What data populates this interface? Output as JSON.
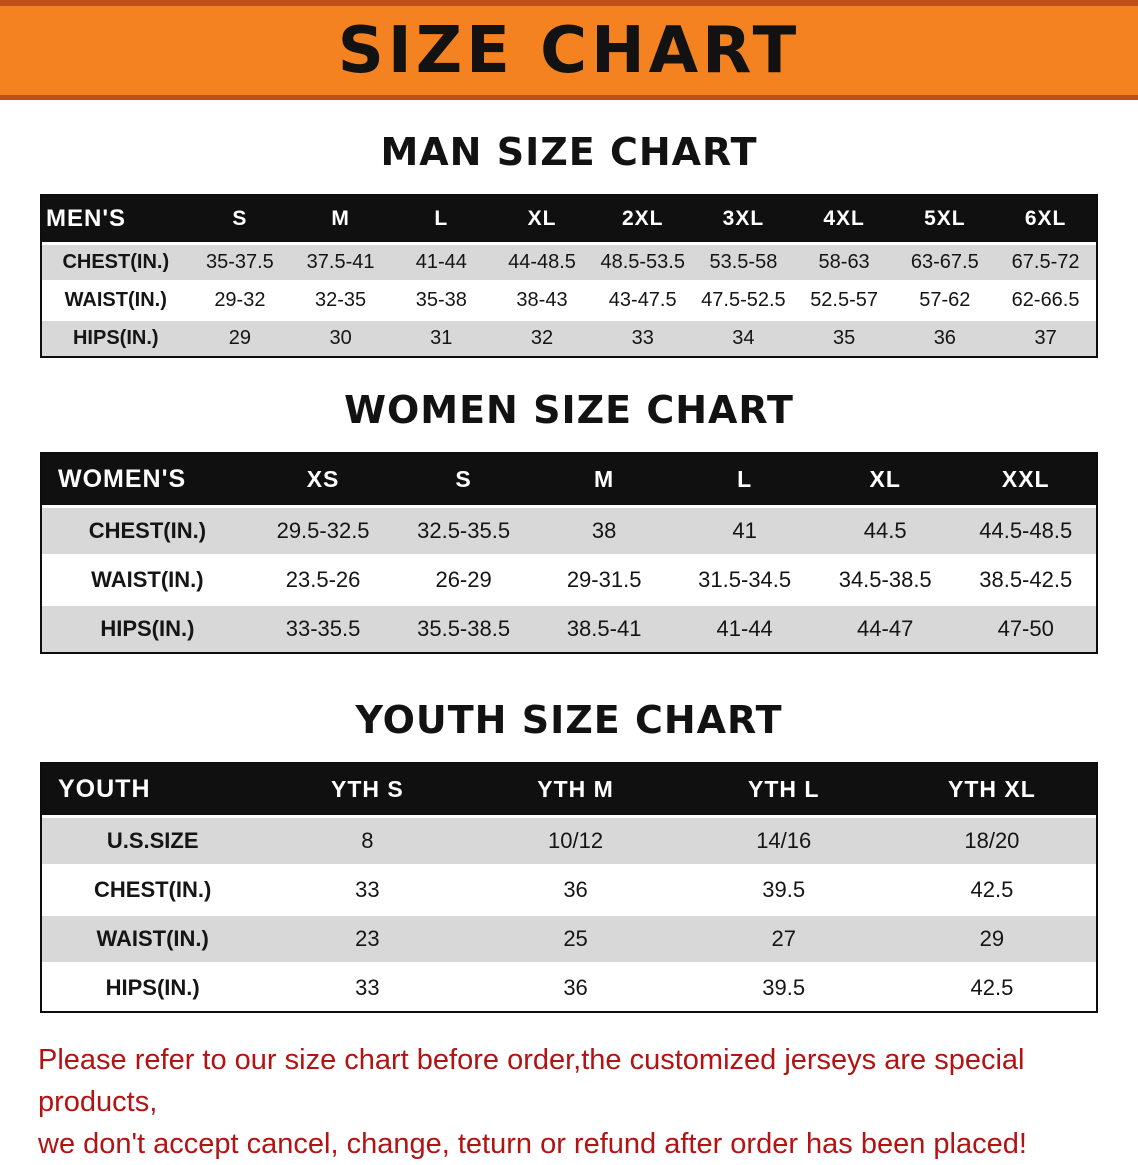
{
  "banner": {
    "title": "SIZE CHART"
  },
  "sections": [
    {
      "heading": "MAN SIZE CHART",
      "table": {
        "header": [
          "MEN'S",
          "S",
          "M",
          "L",
          "XL",
          "2XL",
          "3XL",
          "4XL",
          "5XL",
          "6XL"
        ],
        "rows": [
          [
            "CHEST(IN.)",
            "35-37.5",
            "37.5-41",
            "41-44",
            "44-48.5",
            "48.5-53.5",
            "53.5-58",
            "58-63",
            "63-67.5",
            "67.5-72"
          ],
          [
            "WAIST(IN.)",
            "29-32",
            "32-35",
            "35-38",
            "38-43",
            "43-47.5",
            "47.5-52.5",
            "52.5-57",
            "57-62",
            "62-66.5"
          ],
          [
            "HIPS(IN.)",
            "29",
            "30",
            "31",
            "32",
            "33",
            "34",
            "35",
            "36",
            "37"
          ]
        ]
      }
    },
    {
      "heading": "WOMEN SIZE CHART",
      "table": {
        "header": [
          "WOMEN'S",
          "XS",
          "S",
          "M",
          "L",
          "XL",
          "XXL"
        ],
        "rows": [
          [
            "CHEST(IN.)",
            "29.5-32.5",
            "32.5-35.5",
            "38",
            "41",
            "44.5",
            "44.5-48.5"
          ],
          [
            "WAIST(IN.)",
            "23.5-26",
            "26-29",
            "29-31.5",
            "31.5-34.5",
            "34.5-38.5",
            "38.5-42.5"
          ],
          [
            "HIPS(IN.)",
            "33-35.5",
            "35.5-38.5",
            "38.5-41",
            "41-44",
            "44-47",
            "47-50"
          ]
        ]
      }
    },
    {
      "heading": "YOUTH SIZE CHART",
      "table": {
        "header": [
          "YOUTH",
          "YTH S",
          "YTH M",
          "YTH L",
          "YTH XL"
        ],
        "rows": [
          [
            "U.S.SIZE",
            "8",
            "10/12",
            "14/16",
            "18/20"
          ],
          [
            "CHEST(IN.)",
            "33",
            "36",
            "39.5",
            "42.5"
          ],
          [
            "WAIST(IN.)",
            "23",
            "25",
            "27",
            "29"
          ],
          [
            "HIPS(IN.)",
            "33",
            "36",
            "39.5",
            "42.5"
          ]
        ]
      }
    }
  ],
  "footer": {
    "line1": "Please refer to our size chart before order,the customized jerseys are special products,",
    "line2": "we don't accept cancel, change, teturn or refund after order has been placed!"
  },
  "colors": {
    "banner_orange": "#F58220",
    "banner_edge": "#BE4F17",
    "header_black": "#101010",
    "row_gray": "#D8D8D8",
    "footer_red": "#B31312"
  }
}
